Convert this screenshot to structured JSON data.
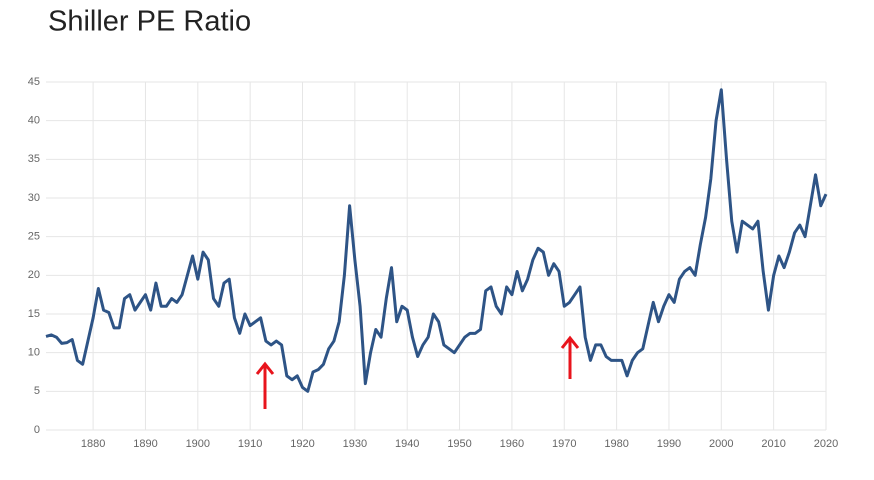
{
  "chart_data": {
    "type": "line",
    "title": "Shiller PE Ratio",
    "x": [
      1871,
      1872,
      1873,
      1874,
      1875,
      1876,
      1877,
      1878,
      1879,
      1880,
      1881,
      1882,
      1883,
      1884,
      1885,
      1886,
      1887,
      1888,
      1889,
      1890,
      1891,
      1892,
      1893,
      1894,
      1895,
      1896,
      1897,
      1898,
      1899,
      1900,
      1901,
      1902,
      1903,
      1904,
      1905,
      1906,
      1907,
      1908,
      1909,
      1910,
      1911,
      1912,
      1913,
      1914,
      1915,
      1916,
      1917,
      1918,
      1919,
      1920,
      1921,
      1922,
      1923,
      1924,
      1925,
      1926,
      1927,
      1928,
      1929,
      1930,
      1931,
      1932,
      1933,
      1934,
      1935,
      1936,
      1937,
      1938,
      1939,
      1940,
      1941,
      1942,
      1943,
      1944,
      1945,
      1946,
      1947,
      1948,
      1949,
      1950,
      1951,
      1952,
      1953,
      1954,
      1955,
      1956,
      1957,
      1958,
      1959,
      1960,
      1961,
      1962,
      1963,
      1964,
      1965,
      1966,
      1967,
      1968,
      1969,
      1970,
      1971,
      1972,
      1973,
      1974,
      1975,
      1976,
      1977,
      1978,
      1979,
      1980,
      1981,
      1982,
      1983,
      1984,
      1985,
      1986,
      1987,
      1988,
      1989,
      1990,
      1991,
      1992,
      1993,
      1994,
      1995,
      1996,
      1997,
      1998,
      1999,
      2000,
      2001,
      2002,
      2003,
      2004,
      2005,
      2006,
      2007,
      2008,
      2009,
      2010,
      2011,
      2012,
      2013,
      2014,
      2015,
      2016,
      2017,
      2018,
      2019,
      2020
    ],
    "series": [
      {
        "color": "#2e5486",
        "values": [
          12.1,
          12.3,
          12.0,
          11.2,
          11.3,
          11.7,
          9.0,
          8.5,
          11.5,
          14.5,
          18.3,
          15.5,
          15.2,
          13.2,
          13.2,
          17.0,
          17.5,
          15.5,
          16.5,
          17.5,
          15.5,
          19.0,
          16.0,
          16.0,
          17.0,
          16.5,
          17.5,
          20.0,
          22.5,
          19.5,
          23.0,
          22.0,
          17.0,
          16.0,
          19.0,
          19.5,
          14.5,
          12.5,
          15.0,
          13.5,
          14.0,
          14.5,
          11.5,
          11.0,
          11.5,
          11.0,
          7.0,
          6.5,
          7.0,
          5.5,
          5.0,
          7.5,
          7.8,
          8.5,
          10.5,
          11.5,
          14.0,
          20.0,
          29.0,
          22.0,
          16.0,
          6.0,
          10.0,
          13.0,
          12.0,
          17.0,
          21.0,
          14.0,
          16.0,
          15.5,
          12.0,
          9.5,
          11.0,
          12.0,
          15.0,
          14.0,
          11.0,
          10.5,
          10.0,
          11.0,
          12.0,
          12.5,
          12.5,
          13.0,
          18.0,
          18.5,
          16.0,
          15.0,
          18.5,
          17.5,
          20.5,
          18.0,
          19.5,
          22.0,
          23.5,
          23.0,
          20.0,
          21.5,
          20.5,
          16.0,
          16.5,
          17.5,
          18.5,
          12.0,
          9.0,
          11.0,
          11.0,
          9.5,
          9.0,
          9.0,
          9.0,
          7.0,
          9.0,
          10.0,
          10.5,
          13.5,
          16.5,
          14.0,
          16.0,
          17.5,
          16.5,
          19.5,
          20.5,
          21.0,
          20.0,
          24.0,
          27.5,
          32.5,
          40.0,
          44.0,
          35.0,
          27.0,
          23.0,
          27.0,
          26.5,
          26.0,
          27.0,
          20.5,
          15.5,
          20.0,
          22.5,
          21.0,
          23.0,
          25.5,
          26.5,
          25.0,
          29.0,
          33.0,
          29.0,
          30.5
        ]
      }
    ],
    "xlim": [
      1871,
      2020
    ],
    "xticks": [
      1880,
      1890,
      1900,
      1910,
      1920,
      1930,
      1940,
      1950,
      1960,
      1970,
      1980,
      1990,
      2000,
      2010,
      2020
    ],
    "ylim": [
      0,
      45
    ],
    "yticks": [
      0,
      5,
      10,
      15,
      20,
      25,
      30,
      35,
      40,
      45
    ],
    "grid": true
  }
}
